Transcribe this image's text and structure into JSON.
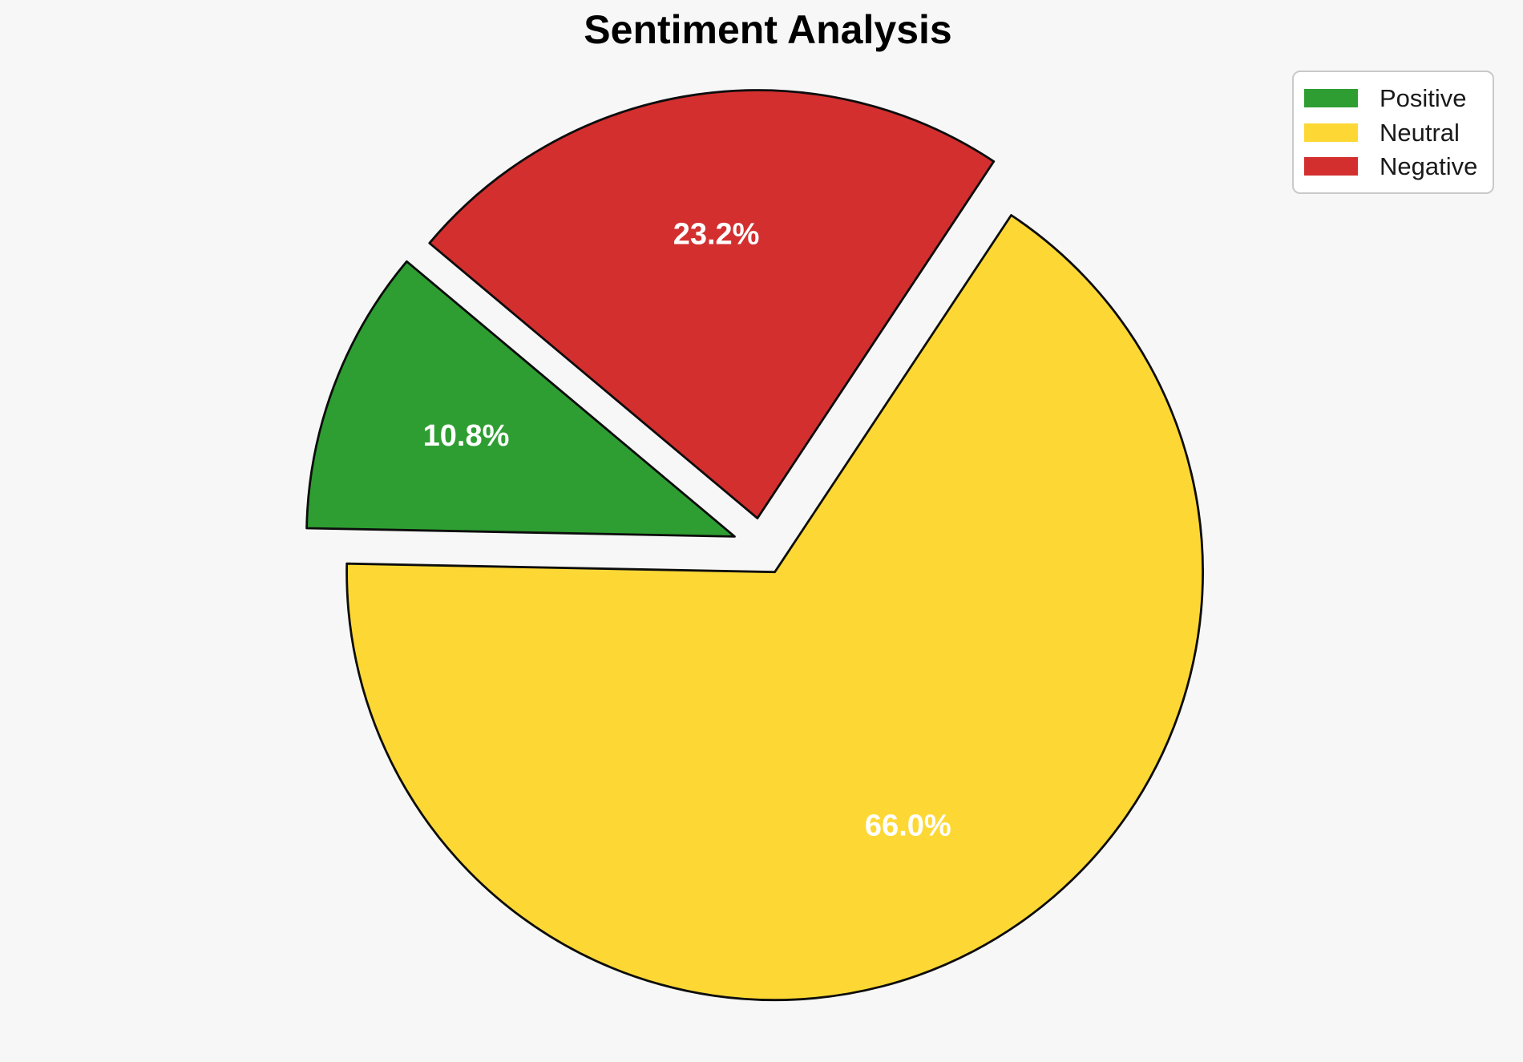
{
  "title": "Sentiment Analysis",
  "chart_data": {
    "type": "pie",
    "title": "Sentiment Analysis",
    "slices": [
      {
        "label": "Positive",
        "value": 10.8,
        "display_pct": "10.8%",
        "color": "#2e9e32"
      },
      {
        "label": "Neutral",
        "value": 66.0,
        "display_pct": "66.0%",
        "color": "#fdd835"
      },
      {
        "label": "Negative",
        "value": 23.2,
        "display_pct": "23.2%",
        "color": "#d32f2f"
      }
    ],
    "legend": {
      "position": "upper right",
      "entries": [
        "Positive",
        "Neutral",
        "Negative"
      ]
    },
    "layout": {
      "center": [
        950,
        682
      ],
      "radius_px": 534,
      "start_angle_deg": 140,
      "counterclockwise": true,
      "explode": 0.067,
      "pct_distance": 0.67,
      "edge_color": "#0d0d0d",
      "edge_width": 2.8,
      "background": "#f7f7f7",
      "pct_label_color": "#ffffff"
    }
  }
}
